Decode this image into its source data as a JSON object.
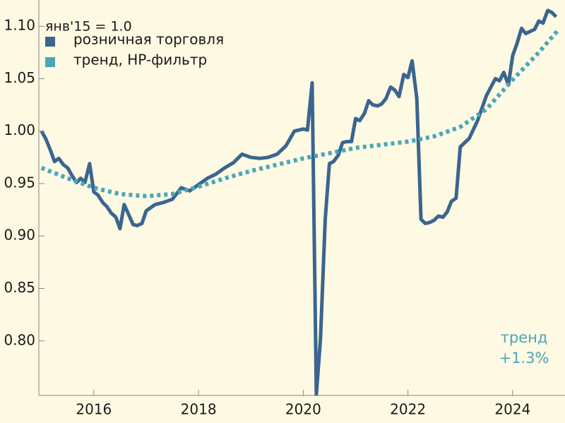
{
  "chart_data": {
    "type": "line",
    "annotations": [
      "янв'15 = 1.0",
      "тренд",
      "+1.3%"
    ],
    "xlim": [
      2014.95,
      2025.0
    ],
    "xticks": [
      2016,
      2018,
      2020,
      2022,
      2024
    ],
    "ylim": [
      0.748,
      1.125
    ],
    "yticks": [
      {
        "value": 0.8,
        "label": "0.80"
      },
      0.85,
      {
        "value": 0.9,
        "label": "0.90"
      },
      0.95,
      {
        "value": 1.0,
        "label": "1.00"
      },
      1.05,
      {
        "value": 1.1,
        "label": "1.10"
      }
    ],
    "series": [
      {
        "name": "розничная торговля",
        "color": "#3b6590",
        "style": "solid",
        "x": [
          2015.0,
          2015.08,
          2015.17,
          2015.25,
          2015.33,
          2015.42,
          2015.5,
          2015.58,
          2015.67,
          2015.75,
          2015.83,
          2015.92,
          2016.0,
          2016.08,
          2016.17,
          2016.25,
          2016.33,
          2016.42,
          2016.5,
          2016.58,
          2016.67,
          2016.75,
          2016.83,
          2016.92,
          2017.0,
          2017.17,
          2017.33,
          2017.5,
          2017.67,
          2017.83,
          2018.0,
          2018.17,
          2018.33,
          2018.5,
          2018.67,
          2018.83,
          2019.0,
          2019.17,
          2019.33,
          2019.5,
          2019.67,
          2019.83,
          2020.0,
          2020.08,
          2020.17,
          2020.25,
          2020.33,
          2020.42,
          2020.5,
          2020.58,
          2020.67,
          2020.75,
          2020.83,
          2020.92,
          2021.0,
          2021.08,
          2021.17,
          2021.25,
          2021.33,
          2021.42,
          2021.5,
          2021.58,
          2021.67,
          2021.75,
          2021.83,
          2021.92,
          2022.0,
          2022.08,
          2022.17,
          2022.25,
          2022.33,
          2022.42,
          2022.5,
          2022.58,
          2022.67,
          2022.75,
          2022.83,
          2022.92,
          2023.0,
          2023.17,
          2023.33,
          2023.5,
          2023.67,
          2023.75,
          2023.83,
          2023.92,
          2024.0,
          2024.08,
          2024.17,
          2024.25,
          2024.33,
          2024.42,
          2024.5,
          2024.58,
          2024.67,
          2024.75,
          2024.83
        ],
        "values": [
          1.0,
          0.993,
          0.982,
          0.971,
          0.974,
          0.968,
          0.965,
          0.958,
          0.951,
          0.955,
          0.951,
          0.969,
          0.942,
          0.939,
          0.932,
          0.928,
          0.922,
          0.918,
          0.907,
          0.93,
          0.92,
          0.911,
          0.91,
          0.912,
          0.924,
          0.93,
          0.932,
          0.935,
          0.946,
          0.943,
          0.949,
          0.955,
          0.959,
          0.965,
          0.97,
          0.978,
          0.975,
          0.974,
          0.975,
          0.978,
          0.986,
          1.0,
          1.002,
          1.001,
          1.046,
          0.749,
          0.802,
          0.916,
          0.969,
          0.971,
          0.977,
          0.989,
          0.99,
          0.99,
          1.012,
          1.01,
          1.017,
          1.029,
          1.025,
          1.024,
          1.026,
          1.031,
          1.042,
          1.039,
          1.033,
          1.054,
          1.051,
          1.067,
          1.031,
          0.916,
          0.912,
          0.913,
          0.915,
          0.919,
          0.918,
          0.923,
          0.933,
          0.936,
          0.985,
          0.993,
          1.01,
          1.034,
          1.05,
          1.048,
          1.056,
          1.044,
          1.072,
          1.083,
          1.098,
          1.093,
          1.095,
          1.097,
          1.105,
          1.103,
          1.115,
          1.113,
          1.109
        ]
      },
      {
        "name": "тренд, HP-фильтр",
        "color": "#4aa7b8",
        "style": "dotted",
        "x": [
          2015.0,
          2015.5,
          2016.0,
          2016.5,
          2017.0,
          2017.5,
          2018.0,
          2018.5,
          2019.0,
          2019.5,
          2020.0,
          2020.5,
          2021.0,
          2021.5,
          2022.0,
          2022.5,
          2023.0,
          2023.5,
          2024.0,
          2024.5,
          2024.88
        ],
        "values": [
          0.965,
          0.955,
          0.946,
          0.94,
          0.938,
          0.94,
          0.947,
          0.955,
          0.962,
          0.968,
          0.974,
          0.979,
          0.984,
          0.987,
          0.99,
          0.995,
          1.004,
          1.021,
          1.049,
          1.075,
          1.097
        ]
      }
    ]
  }
}
